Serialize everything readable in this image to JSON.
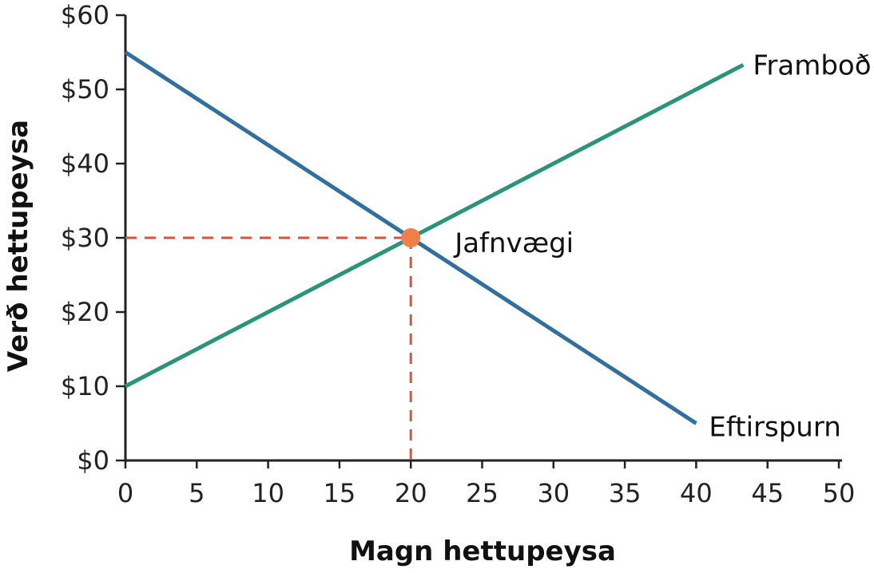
{
  "chart_data": {
    "type": "line",
    "title": "",
    "xlabel": "Magn hettupeysa",
    "ylabel": "Verð hettupeysa",
    "xlim": [
      0,
      50
    ],
    "ylim": [
      0,
      60
    ],
    "x_ticks": [
      0,
      5,
      10,
      15,
      20,
      25,
      30,
      35,
      40,
      45,
      50
    ],
    "x_tick_labels": [
      "0",
      "5",
      "10",
      "15",
      "20",
      "25",
      "30",
      "35",
      "40",
      "45",
      "50"
    ],
    "y_ticks": [
      0,
      10,
      20,
      30,
      40,
      50,
      60
    ],
    "y_tick_labels": [
      "$0",
      "$10",
      "$20",
      "$30",
      "$40",
      "$50",
      "$60"
    ],
    "grid": false,
    "series": [
      {
        "name": "Framboð",
        "color": "#2a9478",
        "x": [
          0,
          43.3
        ],
        "y": [
          10,
          53.3
        ]
      },
      {
        "name": "Eftirspurn",
        "color": "#31709e",
        "x": [
          0,
          40
        ],
        "y": [
          55,
          5
        ]
      }
    ],
    "annotations": [
      {
        "label": "Jafnvægi",
        "x": 20,
        "y": 30,
        "marker_color": "#f07f4a",
        "guide_color": "#d9533a"
      }
    ]
  }
}
